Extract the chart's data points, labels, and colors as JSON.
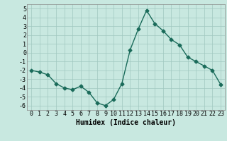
{
  "x": [
    0,
    1,
    2,
    3,
    4,
    5,
    6,
    7,
    8,
    9,
    10,
    11,
    12,
    13,
    14,
    15,
    16,
    17,
    18,
    19,
    20,
    21,
    22,
    23
  ],
  "y": [
    -2.0,
    -2.2,
    -2.5,
    -3.5,
    -4.0,
    -4.2,
    -3.8,
    -4.5,
    -5.7,
    -6.0,
    -5.3,
    -3.5,
    0.3,
    2.7,
    4.8,
    3.3,
    2.5,
    1.5,
    0.9,
    -0.5,
    -1.0,
    -1.5,
    -2.0,
    -3.6
  ],
  "color": "#1a6b5a",
  "bg_color": "#c8e8e0",
  "grid_color": "#a0c8c0",
  "xlabel": "Humidex (Indice chaleur)",
  "ylim": [
    -6.5,
    5.5
  ],
  "xlim": [
    -0.5,
    23.5
  ],
  "yticks": [
    -6,
    -5,
    -4,
    -3,
    -2,
    -1,
    0,
    1,
    2,
    3,
    4,
    5
  ],
  "xticks": [
    0,
    1,
    2,
    3,
    4,
    5,
    6,
    7,
    8,
    9,
    10,
    11,
    12,
    13,
    14,
    15,
    16,
    17,
    18,
    19,
    20,
    21,
    22,
    23
  ],
  "xlabel_fontsize": 7,
  "tick_fontsize": 6,
  "line_width": 1.0,
  "marker": "D",
  "marker_size": 2.5
}
